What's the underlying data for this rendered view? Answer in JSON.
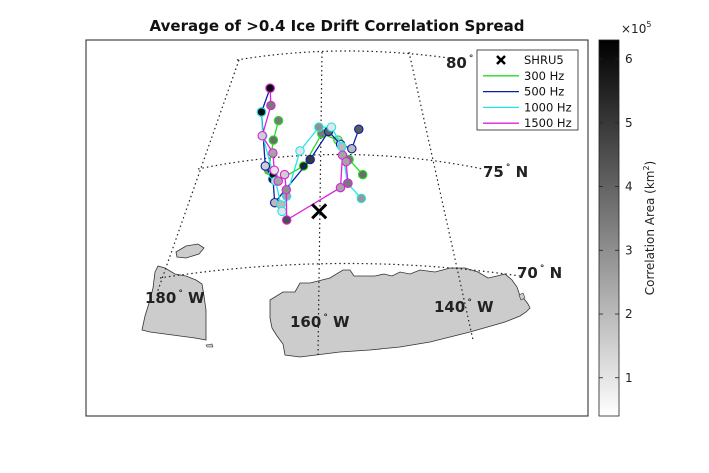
{
  "title": "Average of >0.4 Ice Drift Correlation Spread",
  "map": {
    "land_color": "#cccccc",
    "grid_labels": [
      {
        "name": "lat-label-80",
        "value": "80",
        "deg": "°",
        "suffix": ""
      },
      {
        "name": "lat-label-75",
        "value": "75",
        "deg": "°",
        "suffix": " N"
      },
      {
        "name": "lat-label-70",
        "value": "70",
        "deg": "°",
        "suffix": " N"
      },
      {
        "name": "lon-label-180",
        "value": "180",
        "deg": "°",
        "suffix": " W"
      },
      {
        "name": "lon-label-160",
        "value": "160",
        "deg": "°",
        "suffix": " W"
      },
      {
        "name": "lon-label-140",
        "value": "140",
        "deg": "°",
        "suffix": " W"
      }
    ],
    "marker": {
      "label": "SHRU5",
      "lat": 72.9,
      "lon": -160.4
    }
  },
  "legend": {
    "entries": [
      {
        "label": "SHRU5",
        "symbol": "x",
        "color": "#000000"
      },
      {
        "label": "300 Hz",
        "symbol": "line",
        "color": "#22dd22"
      },
      {
        "label": "500 Hz",
        "symbol": "line",
        "color": "#0a1fa8"
      },
      {
        "label": "1000 Hz",
        "symbol": "line",
        "color": "#22e6e6"
      },
      {
        "label": "1500 Hz",
        "symbol": "line",
        "color": "#dd22dd"
      }
    ]
  },
  "colorbar": {
    "label": "Correlation Area (km",
    "label_sup": "2",
    "label_close": ")",
    "multiplier_base": "×10",
    "multiplier_exp": "5",
    "min": 0.4,
    "max": 6.3,
    "ticks": [
      "1",
      "2",
      "3",
      "4",
      "5",
      "6"
    ],
    "tick_values": [
      1,
      2,
      3,
      4,
      5,
      6
    ],
    "colormap": "gray-reversed"
  },
  "chart_data": {
    "type": "scatter",
    "title": "Average of >0.4 Ice Drift Correlation Spread",
    "xlabel": "",
    "ylabel": "",
    "color_variable": "Correlation Area (km^2) x10^5",
    "series": [
      {
        "name": "300 Hz",
        "color": "#22dd22",
        "lat": [
          77.1,
          76.2,
          74.8,
          74.5,
          74.3,
          75.0,
          76.5,
          76.2,
          75.3,
          74.6
        ],
        "lon": [
          -170.2,
          -171.2,
          -172.0,
          -170.8,
          -170.0,
          -164.0,
          -159.8,
          -156.0,
          -153.5,
          -150.5
        ],
        "area": [
          3.5,
          3.8,
          3.0,
          6.0,
          3.2,
          5.5,
          3.5,
          1.5,
          3.6,
          3.8
        ]
      },
      {
        "name": "500 Hz",
        "color": "#0a1fa8",
        "lat": [
          78.6,
          77.5,
          75.0,
          74.4,
          73.3,
          75.3,
          76.6,
          76.0,
          75.8,
          76.7
        ],
        "lon": [
          -172.6,
          -174.4,
          -172.8,
          -170.9,
          -170.3,
          -162.5,
          -158.2,
          -155.4,
          -152.8,
          -151.0
        ],
        "area": [
          6.0,
          6.0,
          1.5,
          6.0,
          2.0,
          5.0,
          4.0,
          1.2,
          2.0,
          4.2
        ]
      },
      {
        "name": "1000 Hz",
        "color": "#22e6e6",
        "lat": [
          77.5,
          76.4,
          74.6,
          74.3,
          73.2,
          72.9,
          73.6,
          75.7,
          76.8,
          76.8,
          75.9,
          74.2,
          73.5
        ],
        "lon": [
          -174.4,
          -173.8,
          -170.9,
          -170.3,
          -168.9,
          -168.6,
          -167.7,
          -164.9,
          -160.5,
          -157.5,
          -155.1,
          -154.0,
          -151.0
        ],
        "area": [
          6.0,
          2.5,
          6.0,
          1.2,
          2.0,
          1.0,
          2.5,
          1.0,
          3.0,
          1.0,
          2.0,
          3.5,
          2.8
        ]
      },
      {
        "name": "1500 Hz",
        "color": "#dd22dd",
        "lat": [
          78.6,
          77.8,
          76.4,
          75.6,
          74.8,
          74.3,
          74.6,
          73.9,
          72.5,
          74.0,
          75.5,
          75.2,
          74.2
        ],
        "lon": [
          -172.6,
          -172.2,
          -173.9,
          -171.2,
          -170.7,
          -169.7,
          -168.3,
          -167.8,
          -167.5,
          -155.6,
          -155.0,
          -154.2,
          -153.9
        ],
        "area": [
          6.0,
          3.5,
          1.5,
          2.5,
          1.0,
          2.5,
          1.5,
          3.0,
          4.5,
          2.5,
          2.5,
          2.5,
          3.5
        ]
      }
    ]
  }
}
